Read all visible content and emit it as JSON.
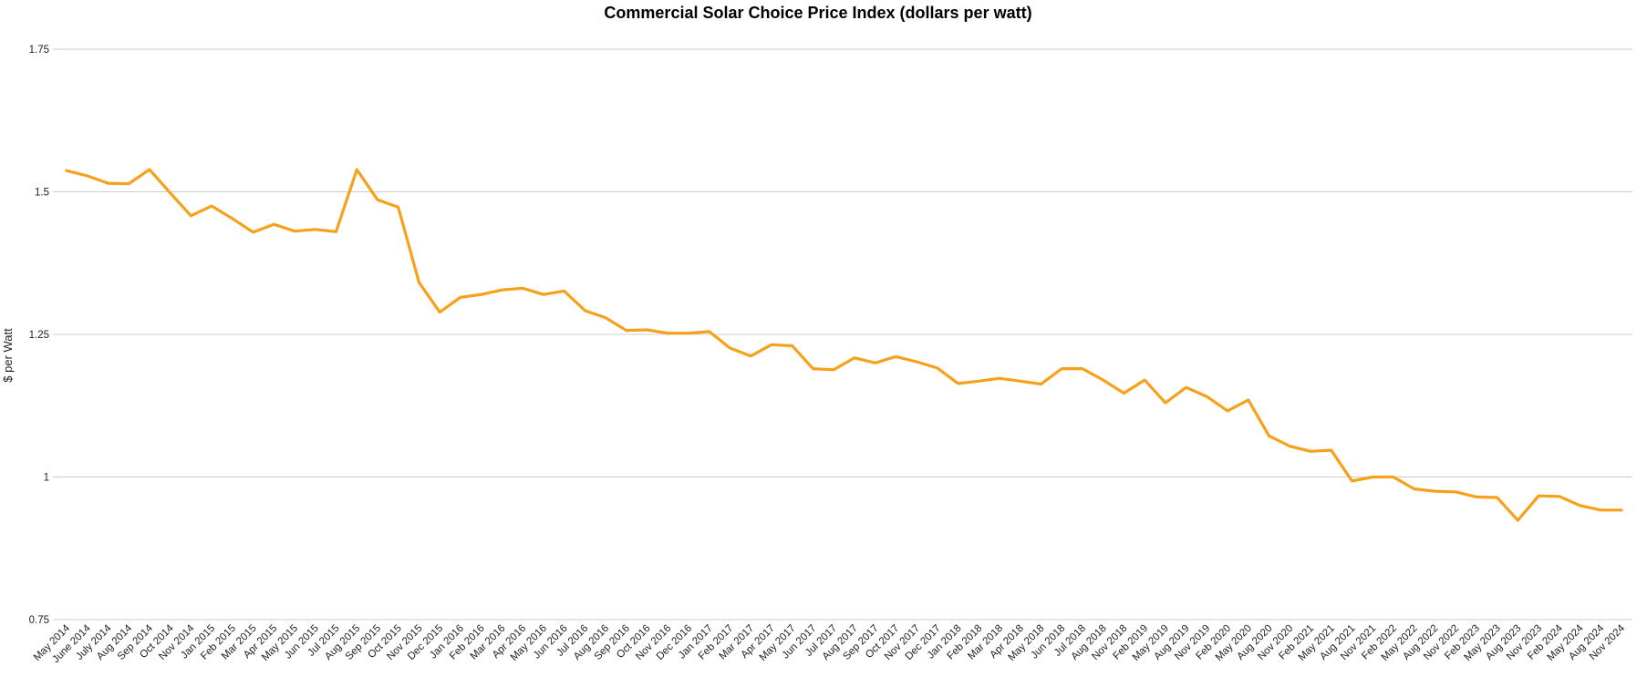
{
  "colors": {
    "series": "#F7A11A",
    "grid": "#cccccc",
    "text": "#222222"
  },
  "chart_data": {
    "type": "line",
    "title": "Commercial Solar Choice Price Index (dollars per watt)",
    "xlabel": "",
    "ylabel": "$ per Watt",
    "ylim": [
      0.75,
      1.75
    ],
    "yticks": [
      {
        "value": 0.75,
        "label": "0.75"
      },
      {
        "value": 1.0,
        "label": "1"
      },
      {
        "value": 1.25,
        "label": "1.25"
      },
      {
        "value": 1.5,
        "label": "1.5"
      },
      {
        "value": 1.75,
        "label": "1.75"
      }
    ],
    "grid": true,
    "legend": "none",
    "categories": [
      "May 2014",
      "June 2014",
      "July 2014",
      "Aug 2014",
      "Sep 2014",
      "Oct 2014",
      "Nov 2014",
      "Jan 2015",
      "Feb 2015",
      "Mar 2015",
      "Apr 2015",
      "May 2015",
      "Jun 2015",
      "Jul 2015",
      "Aug 2015",
      "Sep 2015",
      "Oct 2015",
      "Nov 2015",
      "Dec 2015",
      "Jan 2016",
      "Feb 2016",
      "Mar 2016",
      "Apr 2016",
      "May 2016",
      "Jun 2016",
      "Jul 2016",
      "Aug 2016",
      "Sep 2016",
      "Oct 2016",
      "Nov 2016",
      "Dec 2016",
      "Jan 2017",
      "Feb 2017",
      "Mar 2017",
      "Apr 2017",
      "May 2017",
      "Jun 2017",
      "Jul 2017",
      "Aug 2017",
      "Sep 2017",
      "Oct 2017",
      "Nov 2017",
      "Dec 2017",
      "Jan 2018",
      "Feb 2018",
      "Mar 2018",
      "Apr 2018",
      "May 2018",
      "Jun 2018",
      "Jul 2018",
      "Aug 2018",
      "Nov 2018",
      "Feb 2019",
      "May 2019",
      "Aug 2019",
      "Nov 2019",
      "Feb 2020",
      "May 2020",
      "Aug 2020",
      "Nov 2020",
      "Feb 2021",
      "May 2021",
      "Aug 2021",
      "Nov 2021",
      "Feb 2022",
      "May 2022",
      "Aug 2022",
      "Nov 2022",
      "Feb 2023",
      "May 2023",
      "Aug 2023",
      "Nov 2023",
      "Feb 2024",
      "May 2024",
      "Aug 2024",
      "Nov 2024"
    ],
    "series": [
      {
        "values": [
          1.537,
          1.528,
          1.515,
          1.514,
          1.539,
          1.498,
          1.458,
          1.475,
          1.453,
          1.429,
          1.443,
          1.431,
          1.434,
          1.43,
          1.539,
          1.486,
          1.473,
          1.341,
          1.289,
          1.315,
          1.32,
          1.328,
          1.331,
          1.32,
          1.326,
          1.292,
          1.279,
          1.257,
          1.258,
          1.252,
          1.252,
          1.255,
          1.226,
          1.212,
          1.232,
          1.23,
          1.19,
          1.188,
          1.209,
          1.2,
          1.211,
          1.202,
          1.191,
          1.164,
          1.168,
          1.173,
          1.168,
          1.163,
          1.19,
          1.19,
          1.17,
          1.147,
          1.17,
          1.13,
          1.157,
          1.141,
          1.116,
          1.135,
          1.072,
          1.054,
          1.045,
          1.047,
          0.993,
          1.0,
          1.0,
          0.979,
          0.975,
          0.974,
          0.965,
          0.964,
          0.924,
          0.967,
          0.966,
          0.95,
          0.942,
          0.942
        ]
      }
    ]
  }
}
